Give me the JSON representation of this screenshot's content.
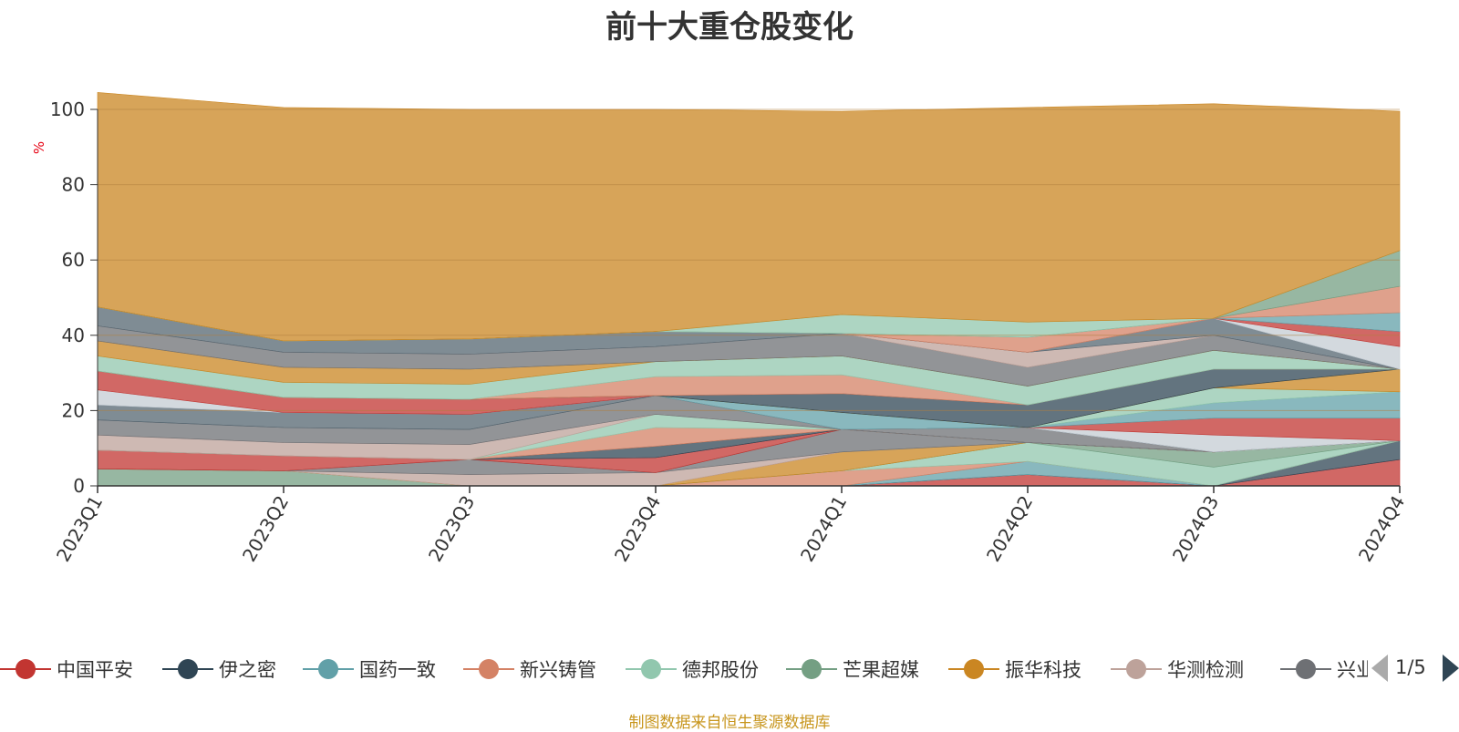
{
  "title": "前十大重仓股变化",
  "footer_note": "制图数据来自恒生聚源数据库",
  "legend_page": "1/5",
  "chart_data": {
    "type": "area",
    "title": "前十大重仓股变化",
    "ylabel": "%",
    "ylim": [
      0,
      100
    ],
    "yticks": [
      0,
      20,
      40,
      60,
      80,
      100
    ],
    "grid": true,
    "legend_position": "bottom",
    "categories": [
      "2023Q1",
      "2023Q2",
      "2023Q3",
      "2023Q4",
      "2024Q1",
      "2024Q2",
      "2024Q3",
      "2024Q4"
    ],
    "series": [
      {
        "name": "中国平安",
        "color": "#c23531",
        "values": [
          0,
          0,
          0,
          0,
          0,
          3,
          0,
          7
        ]
      },
      {
        "name": "伊之密",
        "color": "#2f4554",
        "values": [
          0,
          0,
          0,
          0,
          0,
          0,
          0,
          5
        ]
      },
      {
        "name": "国药一致",
        "color": "#61a0a8",
        "values": [
          0,
          0,
          0,
          0,
          0,
          3.5,
          0,
          0
        ]
      },
      {
        "name": "新兴铸管",
        "color": "#d48265",
        "values": [
          0,
          0,
          0,
          0,
          4,
          0,
          0,
          0
        ]
      },
      {
        "name": "德邦股份",
        "color": "#91c7ae",
        "values": [
          0,
          0,
          0,
          0,
          0,
          5,
          5,
          0
        ]
      },
      {
        "name": "芒果超媒",
        "color": "#749f83",
        "values": [
          4.5,
          4,
          0,
          0,
          0,
          0,
          4,
          0
        ]
      },
      {
        "name": "振华科技",
        "color": "#ca8622",
        "values": [
          0,
          0,
          0,
          0,
          5,
          0,
          0,
          0
        ]
      },
      {
        "name": "华测检测",
        "color": "#bda29a",
        "values": [
          0,
          0,
          3,
          3.5,
          0,
          0,
          0,
          0
        ]
      },
      {
        "name": "兴业银行",
        "color": "#6e7074",
        "values": [
          0,
          0,
          4,
          0,
          6,
          0,
          0,
          0
        ]
      },
      {
        "name": "",
        "color": "#c23531",
        "values": [
          5,
          4,
          0,
          4,
          0,
          0,
          0,
          0
        ]
      },
      {
        "name": "",
        "color": "#2f4554",
        "values": [
          0,
          0,
          0,
          3,
          0,
          0,
          0,
          0
        ]
      },
      {
        "name": "",
        "color": "#d48265",
        "values": [
          0,
          0,
          0,
          5,
          0,
          0,
          0,
          0
        ]
      },
      {
        "name": "",
        "color": "#91c7ae",
        "values": [
          0,
          0,
          0,
          3.5,
          0,
          0,
          0,
          0
        ]
      },
      {
        "name": "",
        "color": "#bda29a",
        "values": [
          4,
          3.5,
          4,
          0,
          0,
          0,
          0,
          0
        ]
      },
      {
        "name": "",
        "color": "#6e7074",
        "values": [
          4,
          4,
          4,
          5,
          0,
          4,
          0,
          0
        ]
      },
      {
        "name": "",
        "color": "#546570",
        "values": [
          4,
          4,
          4,
          0,
          0,
          0,
          0,
          0
        ]
      },
      {
        "name": "",
        "color": "#c4ccd3",
        "values": [
          4,
          0,
          0,
          0,
          0,
          0,
          4.5,
          0
        ]
      },
      {
        "name": "",
        "color": "#c23531",
        "values": [
          5,
          4,
          4,
          0,
          0,
          0,
          4.5,
          6
        ]
      },
      {
        "name": "",
        "color": "#61a0a8",
        "values": [
          0,
          0,
          0,
          0,
          4.5,
          0,
          4,
          7
        ]
      },
      {
        "name": "",
        "color": "#91c7ae",
        "values": [
          0,
          0,
          0,
          0,
          0,
          0,
          4,
          0
        ]
      },
      {
        "name": "",
        "color": "#ca8622",
        "values": [
          0,
          0,
          0,
          0,
          0,
          0,
          0,
          6
        ]
      },
      {
        "name": "",
        "color": "#2f4554",
        "values": [
          0,
          0,
          0,
          0,
          5,
          6,
          5,
          0
        ]
      },
      {
        "name": "",
        "color": "#d48265",
        "values": [
          0,
          0,
          0,
          5,
          5,
          0,
          0,
          0
        ]
      },
      {
        "name": "",
        "color": "#91c7ae",
        "values": [
          4,
          4,
          4,
          4,
          5,
          5,
          5,
          0
        ]
      },
      {
        "name": "",
        "color": "#ca8622",
        "values": [
          4,
          4,
          4,
          0,
          0,
          0,
          0,
          0
        ]
      },
      {
        "name": "",
        "color": "#6e7074",
        "values": [
          4,
          4,
          4,
          4,
          6,
          5,
          4,
          0
        ]
      },
      {
        "name": "",
        "color": "#bda29a",
        "values": [
          0,
          0,
          0,
          0,
          0,
          4,
          0,
          0
        ]
      },
      {
        "name": "",
        "color": "#546570",
        "values": [
          5,
          3,
          4,
          4,
          0,
          0,
          4.5,
          0
        ]
      },
      {
        "name": "",
        "color": "#c4ccd3",
        "values": [
          0,
          0,
          0,
          0,
          0,
          0,
          0,
          6
        ]
      },
      {
        "name": "",
        "color": "#c23531",
        "values": [
          0,
          0,
          0,
          0,
          0,
          0,
          0,
          4
        ]
      },
      {
        "name": "",
        "color": "#61a0a8",
        "values": [
          0,
          0,
          0,
          0,
          0,
          0,
          0,
          5
        ]
      },
      {
        "name": "",
        "color": "#d48265",
        "values": [
          0,
          0,
          0,
          0,
          0,
          4,
          0,
          7
        ]
      },
      {
        "name": "",
        "color": "#749f83",
        "values": [
          0,
          0,
          0,
          0,
          0,
          0,
          0,
          9.5
        ]
      },
      {
        "name": "",
        "color": "#91c7ae",
        "values": [
          0,
          0,
          0,
          0,
          5,
          4,
          0,
          0
        ]
      },
      {
        "name": "",
        "color": "#ca8622",
        "values": [
          57,
          62,
          61,
          59,
          54,
          57,
          57,
          37
        ]
      }
    ]
  }
}
